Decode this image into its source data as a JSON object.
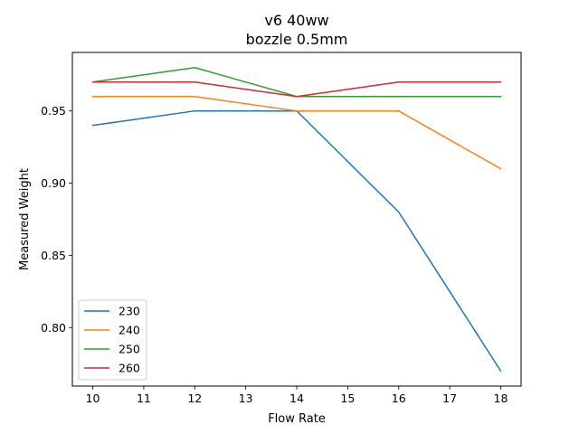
{
  "chart_data": {
    "type": "line",
    "title": "v6 40ww",
    "subtitle": "bozzle 0.5mm",
    "xlabel": "Flow Rate",
    "ylabel": "Measured Weight",
    "x": [
      10,
      12,
      14,
      16,
      18
    ],
    "xlim": [
      9.6,
      18.4
    ],
    "ylim": [
      0.7595,
      0.9905
    ],
    "xticks": [
      10,
      11,
      12,
      13,
      14,
      15,
      16,
      17,
      18
    ],
    "yticks": [
      0.8,
      0.85,
      0.9,
      0.95
    ],
    "ytick_labels": [
      "0.80",
      "0.85",
      "0.90",
      "0.95"
    ],
    "grid": false,
    "legend_position": "lower-left",
    "series": [
      {
        "name": "230",
        "color": "#1f77b4",
        "values": [
          0.94,
          0.95,
          0.95,
          0.88,
          0.77
        ]
      },
      {
        "name": "240",
        "color": "#ff7f0e",
        "values": [
          0.96,
          0.96,
          0.95,
          0.95,
          0.91
        ]
      },
      {
        "name": "250",
        "color": "#2ca02c",
        "values": [
          0.97,
          0.98,
          0.96,
          0.96,
          0.96
        ]
      },
      {
        "name": "260",
        "color": "#d62728",
        "values": [
          0.97,
          0.97,
          0.96,
          0.97,
          0.97
        ]
      }
    ]
  }
}
